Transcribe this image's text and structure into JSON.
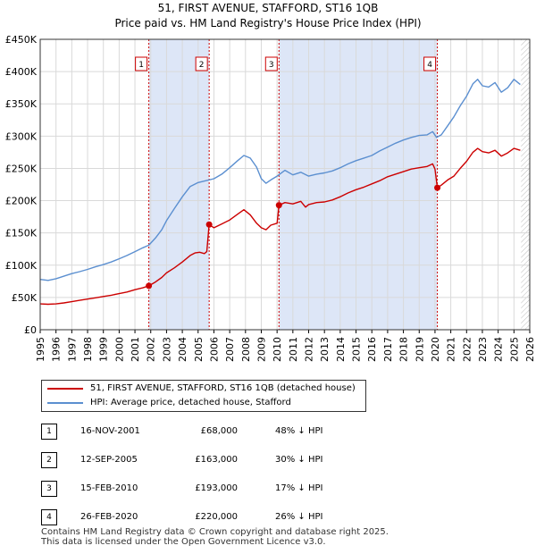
{
  "chart_data": {
    "type": "line",
    "title": "51, FIRST AVENUE, STAFFORD, ST16 1QB",
    "subtitle": "Price paid vs. HM Land Registry's House Price Index (HPI)",
    "xlim": [
      1995,
      2026
    ],
    "ylim": [
      0,
      450000
    ],
    "y_ticks": [
      0,
      50000,
      100000,
      150000,
      200000,
      250000,
      300000,
      350000,
      400000,
      450000
    ],
    "y_tick_labels": [
      "£0",
      "£50K",
      "£100K",
      "£150K",
      "£200K",
      "£250K",
      "£300K",
      "£350K",
      "£400K",
      "£450K"
    ],
    "x_ticks": [
      "1995",
      "1996",
      "1997",
      "1998",
      "1999",
      "2000",
      "2001",
      "2002",
      "2003",
      "2004",
      "2005",
      "2006",
      "2007",
      "2008",
      "2009",
      "2010",
      "2011",
      "2012",
      "2013",
      "2014",
      "2015",
      "2016",
      "2017",
      "2018",
      "2019",
      "2020",
      "2021",
      "2022",
      "2023",
      "2024",
      "2025",
      "2026"
    ],
    "grid": true,
    "colors": {
      "red": "#cc0000",
      "blue": "#5b8fd0",
      "shade": "#dde6f7",
      "grid": "#d9d9d9"
    },
    "series": [
      {
        "name": "51, FIRST AVENUE, STAFFORD, ST16 1QB (detached house)",
        "color": "#cc0000",
        "points": [
          [
            1995.0,
            40000
          ],
          [
            1995.5,
            39500
          ],
          [
            1996.0,
            40000
          ],
          [
            1996.5,
            41500
          ],
          [
            1997.0,
            43500
          ],
          [
            1997.5,
            45500
          ],
          [
            1998.0,
            47500
          ],
          [
            1998.5,
            49500
          ],
          [
            1999.0,
            51500
          ],
          [
            1999.5,
            53500
          ],
          [
            2000.0,
            56000
          ],
          [
            2000.5,
            58500
          ],
          [
            2001.0,
            62000
          ],
          [
            2001.5,
            65000
          ],
          [
            2001.88,
            68000
          ],
          [
            2002.3,
            74000
          ],
          [
            2002.7,
            81000
          ],
          [
            2003.0,
            88000
          ],
          [
            2003.5,
            96000
          ],
          [
            2004.0,
            105000
          ],
          [
            2004.5,
            115000
          ],
          [
            2004.8,
            119000
          ],
          [
            2005.1,
            120000
          ],
          [
            2005.4,
            118000
          ],
          [
            2005.55,
            121000
          ],
          [
            2005.7,
            163000
          ],
          [
            2006.0,
            158000
          ],
          [
            2006.5,
            164000
          ],
          [
            2007.0,
            170000
          ],
          [
            2007.5,
            179000
          ],
          [
            2007.9,
            186000
          ],
          [
            2008.3,
            178000
          ],
          [
            2008.7,
            165000
          ],
          [
            2009.0,
            158000
          ],
          [
            2009.3,
            155000
          ],
          [
            2009.6,
            162000
          ],
          [
            2010.0,
            165000
          ],
          [
            2010.12,
            193000
          ],
          [
            2010.5,
            197000
          ],
          [
            2011.0,
            195000
          ],
          [
            2011.5,
            199000
          ],
          [
            2011.8,
            190000
          ],
          [
            2012.0,
            194000
          ],
          [
            2012.5,
            197000
          ],
          [
            2013.0,
            198000
          ],
          [
            2013.5,
            201000
          ],
          [
            2014.0,
            206000
          ],
          [
            2014.5,
            212000
          ],
          [
            2015.0,
            217000
          ],
          [
            2015.5,
            221000
          ],
          [
            2016.0,
            226000
          ],
          [
            2016.5,
            231000
          ],
          [
            2017.0,
            237000
          ],
          [
            2017.5,
            241000
          ],
          [
            2018.0,
            245000
          ],
          [
            2018.5,
            249000
          ],
          [
            2019.0,
            251000
          ],
          [
            2019.5,
            253000
          ],
          [
            2019.85,
            257000
          ],
          [
            2020.0,
            249000
          ],
          [
            2020.15,
            220000
          ],
          [
            2020.4,
            224000
          ],
          [
            2020.8,
            232000
          ],
          [
            2021.2,
            238000
          ],
          [
            2021.6,
            250000
          ],
          [
            2022.0,
            261000
          ],
          [
            2022.4,
            275000
          ],
          [
            2022.7,
            281000
          ],
          [
            2023.0,
            276000
          ],
          [
            2023.4,
            274000
          ],
          [
            2023.8,
            278000
          ],
          [
            2024.2,
            269000
          ],
          [
            2024.6,
            274000
          ],
          [
            2025.0,
            281000
          ],
          [
            2025.4,
            278000
          ]
        ]
      },
      {
        "name": "HPI: Average price, detached house, Stafford",
        "color": "#5b8fd0",
        "points": [
          [
            1995.0,
            78000
          ],
          [
            1995.5,
            76500
          ],
          [
            1996.0,
            79000
          ],
          [
            1996.5,
            83000
          ],
          [
            1997.0,
            87000
          ],
          [
            1997.5,
            90000
          ],
          [
            1998.0,
            93500
          ],
          [
            1998.5,
            97500
          ],
          [
            1999.0,
            101000
          ],
          [
            1999.5,
            105000
          ],
          [
            2000.0,
            110000
          ],
          [
            2000.5,
            115000
          ],
          [
            2001.0,
            121000
          ],
          [
            2001.5,
            127000
          ],
          [
            2001.88,
            131000
          ],
          [
            2002.3,
            142000
          ],
          [
            2002.7,
            155000
          ],
          [
            2003.0,
            169000
          ],
          [
            2003.5,
            188000
          ],
          [
            2004.0,
            206000
          ],
          [
            2004.5,
            222000
          ],
          [
            2005.0,
            228000
          ],
          [
            2005.5,
            231000
          ],
          [
            2006.0,
            234000
          ],
          [
            2006.5,
            241000
          ],
          [
            2007.0,
            251000
          ],
          [
            2007.5,
            262000
          ],
          [
            2007.9,
            270000
          ],
          [
            2008.3,
            266000
          ],
          [
            2008.7,
            252000
          ],
          [
            2009.0,
            234000
          ],
          [
            2009.3,
            227000
          ],
          [
            2009.6,
            232000
          ],
          [
            2010.0,
            238000
          ],
          [
            2010.5,
            247000
          ],
          [
            2011.0,
            240000
          ],
          [
            2011.5,
            244000
          ],
          [
            2012.0,
            238000
          ],
          [
            2012.5,
            241000
          ],
          [
            2013.0,
            243000
          ],
          [
            2013.5,
            246000
          ],
          [
            2014.0,
            251000
          ],
          [
            2014.5,
            257000
          ],
          [
            2015.0,
            262000
          ],
          [
            2015.5,
            266000
          ],
          [
            2016.0,
            270000
          ],
          [
            2016.5,
            277000
          ],
          [
            2017.0,
            283000
          ],
          [
            2017.5,
            289000
          ],
          [
            2018.0,
            294000
          ],
          [
            2018.5,
            298000
          ],
          [
            2019.0,
            301000
          ],
          [
            2019.5,
            302000
          ],
          [
            2019.85,
            307000
          ],
          [
            2020.1,
            298000
          ],
          [
            2020.4,
            302000
          ],
          [
            2020.8,
            316000
          ],
          [
            2021.2,
            330000
          ],
          [
            2021.6,
            347000
          ],
          [
            2022.0,
            362000
          ],
          [
            2022.4,
            381000
          ],
          [
            2022.7,
            388000
          ],
          [
            2023.0,
            378000
          ],
          [
            2023.4,
            376000
          ],
          [
            2023.8,
            383000
          ],
          [
            2024.2,
            368000
          ],
          [
            2024.6,
            375000
          ],
          [
            2025.0,
            388000
          ],
          [
            2025.4,
            380000
          ]
        ]
      }
    ],
    "sales": [
      {
        "label": "1",
        "x": 2001.88,
        "price": 68000
      },
      {
        "label": "2",
        "x": 2005.7,
        "price": 163000
      },
      {
        "label": "3",
        "x": 2010.12,
        "price": 193000
      },
      {
        "label": "4",
        "x": 2020.15,
        "price": 220000
      }
    ],
    "shaded_ranges": [
      [
        2001.88,
        2005.7
      ],
      [
        2010.12,
        2020.15
      ]
    ],
    "hatched_from": 2025.45
  },
  "legend": {
    "red_label": "51, FIRST AVENUE, STAFFORD, ST16 1QB (detached house)",
    "blue_label": "HPI: Average price, detached house, Stafford"
  },
  "transactions": [
    {
      "num": "1",
      "date": "16-NOV-2001",
      "price": "£68,000",
      "hpi": "48% ↓ HPI"
    },
    {
      "num": "2",
      "date": "12-SEP-2005",
      "price": "£163,000",
      "hpi": "30% ↓ HPI"
    },
    {
      "num": "3",
      "date": "15-FEB-2010",
      "price": "£193,000",
      "hpi": "17% ↓ HPI"
    },
    {
      "num": "4",
      "date": "26-FEB-2020",
      "price": "£220,000",
      "hpi": "26% ↓ HPI"
    }
  ],
  "footer": {
    "line1": "Contains HM Land Registry data © Crown copyright and database right 2025.",
    "line2": "This data is licensed under the Open Government Licence v3.0."
  }
}
